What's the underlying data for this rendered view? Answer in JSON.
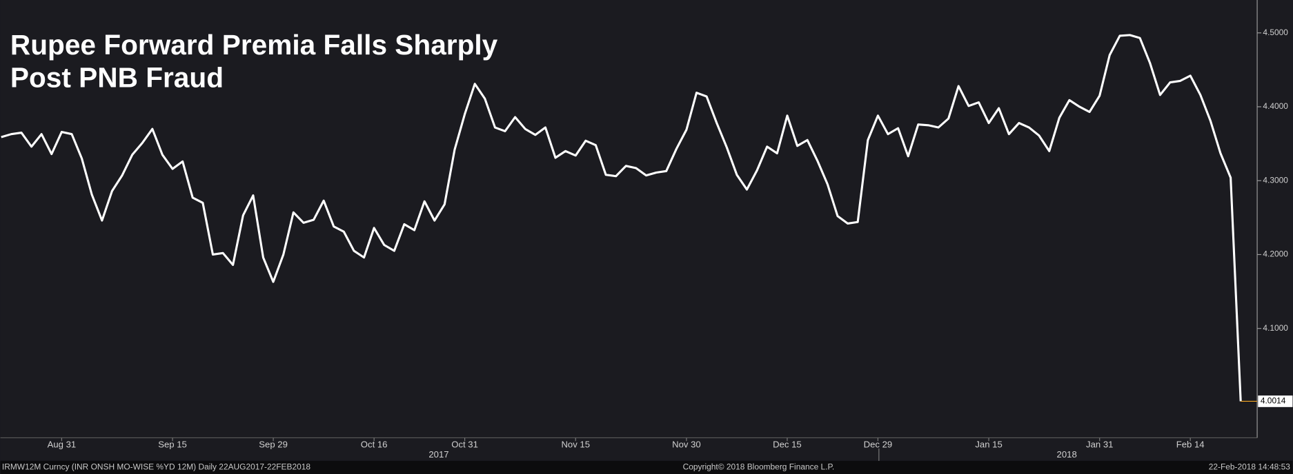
{
  "chart_data": {
    "type": "line",
    "title": [
      "Rupee Forward Premia Falls Sharply",
      "Post PNB Fraud"
    ],
    "categories": [
      null,
      null,
      null,
      null,
      null,
      null,
      "Aug 31",
      null,
      null,
      null,
      null,
      null,
      null,
      null,
      null,
      null,
      null,
      "Sep 15",
      null,
      null,
      null,
      null,
      null,
      null,
      null,
      null,
      null,
      "Sep 29",
      null,
      null,
      null,
      null,
      null,
      null,
      null,
      null,
      null,
      "Oct 16",
      null,
      null,
      null,
      null,
      null,
      null,
      null,
      null,
      "Oct 31",
      null,
      null,
      null,
      null,
      null,
      null,
      null,
      null,
      null,
      null,
      "Nov 15",
      null,
      null,
      null,
      null,
      null,
      null,
      null,
      null,
      null,
      null,
      "Nov 30",
      null,
      null,
      null,
      null,
      null,
      null,
      null,
      null,
      null,
      "Dec 15",
      null,
      null,
      null,
      null,
      null,
      null,
      null,
      null,
      "Dec 29",
      null,
      null,
      null,
      null,
      null,
      null,
      null,
      null,
      null,
      null,
      "Jan 15",
      null,
      null,
      null,
      null,
      null,
      null,
      null,
      null,
      null,
      null,
      "Jan 31",
      null,
      null,
      null,
      null,
      null,
      null,
      null,
      null,
      "Feb 14",
      null,
      null,
      null,
      null,
      null
    ],
    "values": [
      4.359,
      4.363,
      4.365,
      4.346,
      4.363,
      4.336,
      4.366,
      4.363,
      4.33,
      4.281,
      4.246,
      4.286,
      4.307,
      4.335,
      4.351,
      4.37,
      4.335,
      4.316,
      4.326,
      4.277,
      4.27,
      4.2,
      4.202,
      4.186,
      4.253,
      4.28,
      4.196,
      4.163,
      4.2,
      4.257,
      4.243,
      4.247,
      4.273,
      4.238,
      4.231,
      4.205,
      4.196,
      4.236,
      4.213,
      4.205,
      4.241,
      4.233,
      4.272,
      4.246,
      4.268,
      4.342,
      4.39,
      4.431,
      4.411,
      4.372,
      4.367,
      4.386,
      4.37,
      4.362,
      4.372,
      4.331,
      4.34,
      4.334,
      4.354,
      4.348,
      4.308,
      4.306,
      4.32,
      4.317,
      4.307,
      4.311,
      4.313,
      4.343,
      4.369,
      4.419,
      4.414,
      4.378,
      4.345,
      4.308,
      4.288,
      4.314,
      4.346,
      4.337,
      4.388,
      4.347,
      4.355,
      4.327,
      4.295,
      4.252,
      4.242,
      4.244,
      4.355,
      4.388,
      4.363,
      4.371,
      4.333,
      4.376,
      4.375,
      4.372,
      4.384,
      4.428,
      4.401,
      4.406,
      4.378,
      4.398,
      4.363,
      4.378,
      4.372,
      4.361,
      4.34,
      4.385,
      4.409,
      4.4,
      4.393,
      4.415,
      4.47,
      4.496,
      4.497,
      4.493,
      4.459,
      4.416,
      4.433,
      4.435,
      4.442,
      4.416,
      4.381,
      4.337,
      4.304,
      4.0014
    ],
    "color": "#ffffff",
    "last_value_color": "#f5a623",
    "ylim": [
      3.952,
      4.5445
    ],
    "yticks": [
      {
        "value": 4.1,
        "label": "4.1000"
      },
      {
        "value": 4.2,
        "label": "4.2000"
      },
      {
        "value": 4.3,
        "label": "4.3000"
      },
      {
        "value": 4.4,
        "label": "4.4000"
      },
      {
        "value": 4.5,
        "label": "4.5000"
      }
    ],
    "x_groups": [
      "2017",
      "2018"
    ],
    "footer": [
      "IRMW12M Curncy (INR ONSH MO-WISE %YD 12M)  Daily 22AUG2017-22FEB2018",
      "Copyright© 2018 Bloomberg Finance L.P.",
      "22-Feb-2018 14:48:53"
    ]
  }
}
